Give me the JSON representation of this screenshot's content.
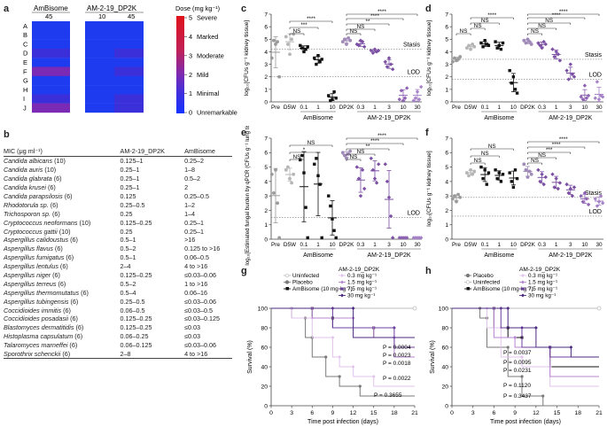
{
  "panel_labels": [
    "a",
    "b",
    "c",
    "d",
    "e",
    "f",
    "g",
    "h"
  ],
  "panel_a": {
    "group1_title": "AmBisome",
    "group2_title": "AM-2-19_DP2K",
    "doses": [
      "45",
      "10",
      "45"
    ],
    "rows": [
      "A",
      "B",
      "C",
      "D",
      "E",
      "F",
      "G",
      "H",
      "I",
      "J"
    ],
    "colorbar_title": "Dose (mg kg⁻¹)",
    "colorbar_ticks": [
      {
        "v": "5",
        "l": "Severe"
      },
      {
        "v": "4",
        "l": "Marked"
      },
      {
        "v": "3",
        "l": "Moderate"
      },
      {
        "v": "2",
        "l": "Mild"
      },
      {
        "v": "1",
        "l": "Minimal"
      },
      {
        "v": "0",
        "l": "Unremarkable"
      }
    ],
    "colors": {
      "zero": "#1f3bef",
      "minimal": "#3b2fd9",
      "mild": "#7a2ab5",
      "moderate": "#b22a6a",
      "severe": "#d81f26"
    }
  },
  "panel_b": {
    "headers": [
      "MIC (μg ml⁻¹)",
      "AM-2-19_DP2K",
      "AmBisome"
    ],
    "rows": [
      {
        "org": "Candida albicans",
        "n": "(10)",
        "v1": "0.125–1",
        "v2": "0.25–2"
      },
      {
        "org": "Candida auris",
        "n": "(10)",
        "v1": "0.25–1",
        "v2": "1–8"
      },
      {
        "org": "Candida glabrata",
        "n": "(6)",
        "v1": "0.25–1",
        "v2": "0.5–2"
      },
      {
        "org": "Candida krusei",
        "n": "(6)",
        "v1": "0.25–1",
        "v2": "2"
      },
      {
        "org": "Candida parapsilosis",
        "n": "(6)",
        "v1": "0.125",
        "v2": "0.25–0.5"
      },
      {
        "org": "Rhodotorula sp.",
        "n": "(6)",
        "v1": "0.25–0.5",
        "v2": "1–2"
      },
      {
        "org": "Trichosporon sp.",
        "n": "(6)",
        "v1": "0.25",
        "v2": "1–4"
      },
      {
        "org": "Cryptococcus neoformans",
        "n": "(10)",
        "v1": "0.125–0.25",
        "v2": "0.25–1"
      },
      {
        "org": "Cryptococcus gattii",
        "n": "(10)",
        "v1": "0.25",
        "v2": "0.25–1"
      },
      {
        "org": "Aspergillus calidoustus",
        "n": "(6)",
        "v1": "0.5–1",
        "v2": ">16"
      },
      {
        "org": "Aspergillus flavus",
        "n": "(6)",
        "v1": "0.5–2",
        "v2": "0.125 to >16"
      },
      {
        "org": "Aspergillus fumigatus",
        "n": "(6)",
        "v1": "0.5–1",
        "v2": "0.06–0.5"
      },
      {
        "org": "Aspergillus lentulus",
        "n": "(6)",
        "v1": "2–4",
        "v2": "4 to >16"
      },
      {
        "org": "Aspergillus niger",
        "n": "(6)",
        "v1": "0.125–0.25",
        "v2": "≤0.03–0.06"
      },
      {
        "org": "Aspergillus terreus",
        "n": "(6)",
        "v1": "0.5–2",
        "v2": "1 to >16"
      },
      {
        "org": "Aspergillus thermomutatus",
        "n": "(6)",
        "v1": "0.5–4",
        "v2": "0.06–16"
      },
      {
        "org": "Aspergillus tubingensis",
        "n": "(6)",
        "v1": "0.25–0.5",
        "v2": "≤0.03–0.06"
      },
      {
        "org": "Coccidioides immitis",
        "n": "(6)",
        "v1": "0.06–0.5",
        "v2": "≤0.03–0.5"
      },
      {
        "org": "Coccidioides posadasii",
        "n": "(6)",
        "v1": "0.125–0.25",
        "v2": "≤0.03–0.125"
      },
      {
        "org": "Blastomyces dermatitidis",
        "n": "(6)",
        "v1": "0.125–0.25",
        "v2": "≤0.03"
      },
      {
        "org": "Histoplasma capsulatum",
        "n": "(6)",
        "v1": "0.06–0.25",
        "v2": "≤0.03"
      },
      {
        "org": "Talaromyces marneffei",
        "n": "(6)",
        "v1": "0.06–0.125",
        "v2": "≤0.03–0.06"
      },
      {
        "org": "Sporothrix schenckii",
        "n": "(6)",
        "v1": "2–8",
        "v2": "4 to >16"
      }
    ]
  },
  "groups": [
    {
      "t": "Pre",
      "c": "#9a9a9a",
      "m": "c"
    },
    {
      "t": "D5W",
      "c": "#b5b5b5",
      "m": "c"
    },
    {
      "t": "0.1",
      "c": "#111111",
      "m": "s"
    },
    {
      "t": "1",
      "c": "#111111",
      "m": "s"
    },
    {
      "t": "10",
      "c": "#111111",
      "m": "s"
    },
    {
      "t": "DP2K",
      "c": "#a08ab8",
      "m": "c"
    },
    {
      "t": "0.3",
      "c": "#7b4fa3",
      "m": "d"
    },
    {
      "t": "1",
      "c": "#7b4fa3",
      "m": "d"
    },
    {
      "t": "3",
      "c": "#7b4fa3",
      "m": "d"
    },
    {
      "t": "10",
      "c": "#8e63b3",
      "m": "d"
    },
    {
      "t": "30",
      "c": "#a682c8",
      "m": "d"
    }
  ],
  "group_labels": {
    "ambisome": "AmBisome",
    "am219": "AM-2-19_DP2K"
  },
  "ref_labels": {
    "stasis": "Stasis",
    "lod": "LOD"
  },
  "sig": {
    "ns": "NS",
    "one": "*",
    "two": "**",
    "three": "***",
    "four": "****"
  },
  "panel_c": {
    "ylabel": "log₁₀[CFUs g⁻¹ kidney tissue]",
    "ylim": [
      0,
      7
    ],
    "ticks": [
      "0",
      "1",
      "2",
      "3",
      "4",
      "5",
      "6",
      "7"
    ],
    "stasis": 4.2,
    "lod": 2.0,
    "values": [
      [
        3.5,
        4.9,
        4.6,
        4.8,
        2.0
      ],
      [
        5.2,
        4.6,
        3.8,
        5.0,
        5.4
      ],
      [
        4.5,
        4.3,
        4.0,
        4.2,
        4.4
      ],
      [
        3.5,
        3.0,
        3.7,
        3.2,
        3.4
      ],
      [
        0.5,
        0.1,
        0.2,
        0.8,
        0.3
      ],
      [
        4.8,
        5.0,
        4.6,
        5.1,
        4.9
      ],
      [
        4.6,
        4.5,
        4.9,
        4.8,
        4.4
      ],
      [
        4.1,
        3.9,
        4.2,
        4.0,
        4.1
      ],
      [
        3.2,
        2.8,
        3.5,
        3.0,
        2.6
      ],
      [
        0.2,
        0.9,
        0.1,
        0.3,
        1.1
      ],
      [
        0.1,
        0.3,
        0.8,
        0.2,
        1.2
      ]
    ]
  },
  "panel_d": {
    "ylabel": "log₁₀[CFUs g⁻¹ kidney tissue]",
    "ylim": [
      0,
      7
    ],
    "ticks": [
      "0",
      "1",
      "2",
      "3",
      "4",
      "5",
      "6",
      "7"
    ],
    "stasis": 3.4,
    "lod": 1.8,
    "values": [
      [
        3.2,
        3.5,
        3.3,
        3.4,
        3.6
      ],
      [
        4.3,
        4.5,
        4.2,
        4.6,
        4.4
      ],
      [
        4.7,
        4.4,
        4.9,
        4.6,
        4.5
      ],
      [
        4.8,
        4.3,
        4.5,
        4.2,
        4.7
      ],
      [
        2.5,
        1.5,
        2.0,
        1.0,
        0.7
      ],
      [
        4.9,
        4.7,
        5.0,
        4.8,
        4.6
      ],
      [
        4.7,
        4.5,
        4.3,
        4.8,
        4.6
      ],
      [
        4.2,
        3.6,
        4.0,
        3.8,
        3.3
      ],
      [
        2.5,
        1.8,
        3.0,
        2.2,
        2.0
      ],
      [
        0.4,
        0.2,
        1.3,
        0.3,
        0.5
      ],
      [
        0.3,
        1.6,
        0.2,
        0.5,
        0.4
      ]
    ]
  },
  "panel_e": {
    "ylabel": "log₁₀[Estimated fungal burden by qPCR (CFUs g⁻¹ lung tissue)]",
    "ylim": [
      0,
      7
    ],
    "ticks": [
      "0",
      "1",
      "2",
      "3",
      "4",
      "5",
      "6",
      "7"
    ],
    "lod": 1.5,
    "values": [
      [
        4.5,
        3.2,
        4.8,
        2.5,
        0.1
      ],
      [
        4.8,
        5.0,
        4.2,
        3.9,
        4.5
      ],
      [
        5.5,
        5.8,
        4.6,
        2.2,
        0.1
      ],
      [
        5.2,
        5.6,
        4.4,
        3.8,
        0.1
      ],
      [
        3.0,
        2.3,
        1.4,
        0.6,
        0.1
      ],
      [
        6.0,
        5.8,
        5.6,
        5.9,
        6.1
      ],
      [
        5.0,
        4.2,
        3.0,
        4.8,
        3.5
      ],
      [
        5.6,
        4.8,
        4.2,
        3.9,
        5.2
      ],
      [
        5.2,
        4.0,
        2.9,
        1.6,
        0.1
      ],
      [
        0.1,
        0.1,
        0.1,
        0.1,
        0.1
      ],
      [
        0.1,
        0.1,
        0.1,
        0.1,
        0.1
      ]
    ]
  },
  "panel_f": {
    "ylabel": "log₁₀[CFUs g⁻¹ kidney tissue]",
    "ylim": [
      0,
      7
    ],
    "ticks": [
      "0",
      "1",
      "2",
      "3",
      "4",
      "5",
      "6",
      "7"
    ],
    "stasis": 2.9,
    "lod": 1.6,
    "values": [
      [
        2.8,
        3.0,
        2.6,
        3.1,
        2.9
      ],
      [
        4.6,
        4.4,
        4.8,
        4.5,
        4.7
      ],
      [
        5.0,
        4.2,
        4.8,
        3.8,
        4.6
      ],
      [
        4.8,
        4.2,
        4.6,
        4.0,
        4.5
      ],
      [
        4.6,
        4.0,
        3.6,
        4.8,
        4.2
      ],
      [
        5.2,
        4.8,
        4.3,
        4.7,
        4.5
      ],
      [
        4.8,
        4.0,
        4.5,
        3.8,
        4.3
      ],
      [
        4.5,
        3.6,
        4.2,
        3.5,
        3.9
      ],
      [
        3.8,
        3.2,
        3.5,
        3.0,
        3.6
      ],
      [
        3.0,
        2.6,
        3.2,
        2.8,
        2.4
      ],
      [
        2.8,
        2.3,
        2.6,
        3.0,
        2.5
      ]
    ]
  },
  "panel_g": {
    "legend_title": "AM-2-19_DP2K",
    "legend_left": [
      "Uninfected",
      "Placebo",
      "AmBisome (10 mg kg⁻¹)"
    ],
    "legend_right": [
      "0.3 mg kg⁻¹",
      "1.5 mg kg⁻¹",
      "7.5 mg kg⁻¹",
      "30 mg kg⁻¹"
    ],
    "ylabel": "Survival (%)",
    "xlabel": "Time post infection (days)",
    "xticks": [
      "0",
      "3",
      "6",
      "9",
      "12",
      "15",
      "18",
      "21"
    ],
    "yticks": [
      "0",
      "20",
      "40",
      "60",
      "80",
      "100"
    ],
    "pvalues": [
      "P = 0.0004",
      "P = 0.0023",
      "P = 0.0018",
      "P = 0.0022",
      "P = 0.3655"
    ],
    "curves": [
      {
        "name": "Uninfected",
        "color": "#bdbdbd",
        "pts": [
          [
            0,
            100
          ],
          [
            21,
            100
          ]
        ]
      },
      {
        "name": "Placebo",
        "color": "#7a7a7a",
        "pts": [
          [
            0,
            100
          ],
          [
            3,
            100
          ],
          [
            3,
            90
          ],
          [
            5,
            90
          ],
          [
            5,
            70
          ],
          [
            6,
            70
          ],
          [
            6,
            50
          ],
          [
            8,
            50
          ],
          [
            8,
            30
          ],
          [
            10,
            30
          ],
          [
            10,
            20
          ],
          [
            13,
            20
          ],
          [
            13,
            10
          ],
          [
            21,
            10
          ]
        ]
      },
      {
        "name": "AmBisome",
        "color": "#111111",
        "pts": [
          [
            0,
            100
          ],
          [
            6,
            100
          ],
          [
            6,
            90
          ],
          [
            9,
            90
          ],
          [
            9,
            80
          ],
          [
            15,
            80
          ],
          [
            15,
            70
          ],
          [
            21,
            70
          ]
        ]
      },
      {
        "name": "0.3 mg",
        "color": "#e2c4ec",
        "pts": [
          [
            0,
            100
          ],
          [
            3,
            100
          ],
          [
            3,
            90
          ],
          [
            6,
            90
          ],
          [
            6,
            70
          ],
          [
            9,
            70
          ],
          [
            9,
            50
          ],
          [
            10,
            50
          ],
          [
            10,
            40
          ],
          [
            12,
            40
          ],
          [
            12,
            30
          ],
          [
            15,
            30
          ],
          [
            15,
            20
          ],
          [
            21,
            20
          ]
        ]
      },
      {
        "name": "1.5 mg",
        "color": "#b884d1",
        "pts": [
          [
            0,
            100
          ],
          [
            6,
            100
          ],
          [
            6,
            90
          ],
          [
            12,
            90
          ],
          [
            12,
            80
          ],
          [
            15,
            80
          ],
          [
            15,
            70
          ],
          [
            18,
            70
          ],
          [
            18,
            50
          ],
          [
            21,
            50
          ]
        ]
      },
      {
        "name": "7.5 mg",
        "color": "#6d3f9e",
        "pts": [
          [
            0,
            100
          ],
          [
            9,
            100
          ],
          [
            9,
            80
          ],
          [
            18,
            80
          ],
          [
            18,
            60
          ],
          [
            21,
            60
          ]
        ]
      },
      {
        "name": "30 mg",
        "color": "#4b2a80",
        "pts": [
          [
            0,
            100
          ],
          [
            12,
            100
          ],
          [
            12,
            70
          ],
          [
            21,
            70
          ]
        ]
      }
    ]
  },
  "panel_h": {
    "legend_title": "AM-2-19_DP2K",
    "legend_left": [
      "Placebo",
      "Uninfected",
      "AmBisome (10 mg kg⁻¹)"
    ],
    "legend_right": [
      "0.3 mg kg⁻¹",
      "1.5 mg kg⁻¹",
      "7.5 mg kg⁻¹",
      "30 mg kg⁻¹"
    ],
    "ylabel": "Survival (%)",
    "xlabel": "Time post infection (days)",
    "xticks": [
      "0",
      "3",
      "6",
      "9",
      "12",
      "15",
      "18",
      "21"
    ],
    "yticks": [
      "0",
      "20",
      "40",
      "60",
      "80",
      "100"
    ],
    "pvalues": [
      "P = 0.0037",
      "P = 0.0095",
      "P = 0.0231",
      "P = 0.1120",
      "P = 0.3437"
    ],
    "curves": [
      {
        "name": "Uninfected",
        "color": "#bdbdbd",
        "pts": [
          [
            0,
            100
          ],
          [
            21,
            100
          ]
        ]
      },
      {
        "name": "Placebo",
        "color": "#7a7a7a",
        "pts": [
          [
            0,
            100
          ],
          [
            4,
            100
          ],
          [
            4,
            90
          ],
          [
            5,
            90
          ],
          [
            5,
            60
          ],
          [
            8,
            60
          ],
          [
            8,
            30
          ],
          [
            10,
            30
          ],
          [
            10,
            10
          ],
          [
            13,
            10
          ],
          [
            13,
            0
          ],
          [
            21,
            0
          ]
        ]
      },
      {
        "name": "AmBisome",
        "color": "#111111",
        "pts": [
          [
            0,
            100
          ],
          [
            6,
            100
          ],
          [
            6,
            80
          ],
          [
            8,
            80
          ],
          [
            8,
            70
          ],
          [
            10,
            70
          ],
          [
            10,
            60
          ],
          [
            14,
            60
          ],
          [
            14,
            40
          ],
          [
            21,
            40
          ]
        ]
      },
      {
        "name": "0.3 mg",
        "color": "#e2c4ec",
        "pts": [
          [
            0,
            100
          ],
          [
            5,
            100
          ],
          [
            5,
            80
          ],
          [
            7,
            80
          ],
          [
            7,
            50
          ],
          [
            10,
            50
          ],
          [
            10,
            40
          ],
          [
            14,
            40
          ],
          [
            14,
            20
          ],
          [
            21,
            20
          ]
        ]
      },
      {
        "name": "1.5 mg",
        "color": "#b884d1",
        "pts": [
          [
            0,
            100
          ],
          [
            6,
            100
          ],
          [
            6,
            70
          ],
          [
            9,
            70
          ],
          [
            9,
            60
          ],
          [
            14,
            60
          ],
          [
            14,
            30
          ],
          [
            21,
            30
          ]
        ]
      },
      {
        "name": "7.5 mg",
        "color": "#6d3f9e",
        "pts": [
          [
            0,
            100
          ],
          [
            7,
            100
          ],
          [
            7,
            80
          ],
          [
            10,
            80
          ],
          [
            10,
            60
          ],
          [
            14,
            60
          ],
          [
            14,
            50
          ],
          [
            21,
            50
          ]
        ]
      },
      {
        "name": "30 mg",
        "color": "#4b2a80",
        "pts": [
          [
            0,
            100
          ],
          [
            8,
            100
          ],
          [
            8,
            80
          ],
          [
            12,
            80
          ],
          [
            12,
            60
          ],
          [
            17,
            60
          ],
          [
            17,
            50
          ],
          [
            21,
            50
          ]
        ]
      }
    ]
  }
}
